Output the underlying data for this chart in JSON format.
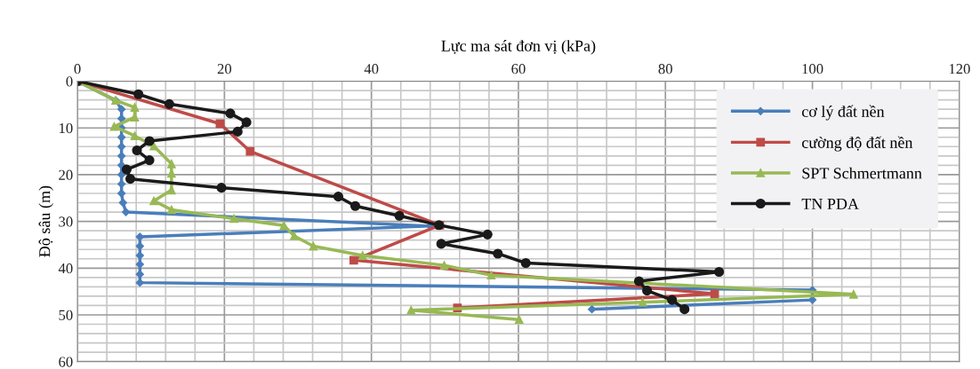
{
  "chart_data": {
    "type": "line",
    "xlabel": "Lực ma sát đơn vị (kPa)",
    "ylabel": "Độ sâu (m)",
    "xlim": [
      0,
      120
    ],
    "xticks": [
      0,
      20,
      40,
      60,
      80,
      100,
      120
    ],
    "ylim": [
      60,
      0
    ],
    "yticks": [
      0,
      10,
      20,
      30,
      40,
      50,
      60
    ],
    "grid": true,
    "legend": "top right",
    "series": [
      {
        "name": "cơ lý đất nền",
        "color": "#4a7ebb",
        "marker": "diamond",
        "x": [
          0,
          5.2,
          6.0,
          6.0,
          6.0,
          6.0,
          6.0,
          6.0,
          6.0,
          6.0,
          6.0,
          6.0,
          6.2,
          6.6,
          48,
          8.5,
          8.5,
          8.5,
          8.5,
          8.5,
          8.5,
          100,
          100,
          70
        ],
        "values": [
          0,
          4.1,
          6,
          8,
          10,
          12,
          14,
          16,
          18,
          20,
          22,
          24,
          26,
          28,
          31,
          33.3,
          35.3,
          37.3,
          39.2,
          41.3,
          43.1,
          44.7,
          46.8,
          48.8
        ]
      },
      {
        "name": "cường độ đất nền",
        "color": "#be4b48",
        "marker": "square",
        "x": [
          0,
          19.4,
          23.5,
          49.3,
          37.6,
          86.7,
          51.7
        ],
        "values": [
          0,
          9.1,
          15.0,
          30.8,
          38.3,
          45.5,
          48.5
        ]
      },
      {
        "name": "SPT Schmertmann",
        "color": "#98b954",
        "marker": "triangle",
        "x": [
          0,
          5.2,
          7.8,
          7.8,
          5.0,
          7.8,
          10.4,
          12.8,
          12.8,
          12.8,
          10.4,
          12.8,
          21.3,
          28.1,
          29.5,
          32.1,
          38.8,
          49.9,
          56.3,
          105.6,
          76.9,
          45.4,
          60.1
        ],
        "values": [
          0,
          4.1,
          5.6,
          7.7,
          9.7,
          11.7,
          13.9,
          17.7,
          19.7,
          23.3,
          25.6,
          27.5,
          29.4,
          30.9,
          33.1,
          35.3,
          37.3,
          39.4,
          41.5,
          45.6,
          47.3,
          49.0,
          51.0
        ]
      },
      {
        "name": "TN PDA",
        "color": "#1a1a1a",
        "marker": "circle",
        "x": [
          0,
          8.3,
          12.5,
          20.8,
          23.0,
          21.8,
          9.8,
          8.1,
          9.8,
          6.7,
          7.2,
          19.6,
          35.5,
          37.8,
          43.8,
          49.2,
          55.8,
          49.5,
          57.2,
          61.0,
          87.3,
          76.4,
          77.5,
          80.9,
          82.6
        ],
        "values": [
          0,
          2.8,
          4.9,
          6.9,
          8.8,
          10.8,
          12.8,
          14.8,
          16.9,
          18.9,
          20.9,
          22.8,
          24.7,
          26.7,
          28.8,
          30.8,
          32.8,
          34.8,
          36.9,
          38.9,
          40.8,
          42.8,
          44.8,
          46.8,
          48.8
        ]
      }
    ]
  }
}
